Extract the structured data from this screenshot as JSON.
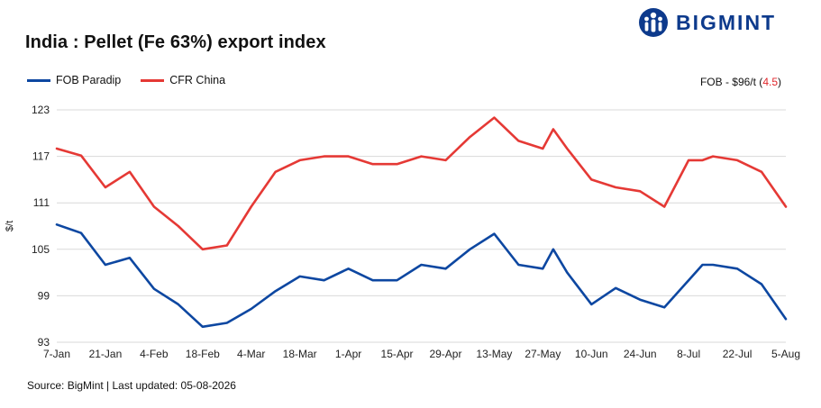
{
  "header": {
    "title": "India : Pellet (Fe 63%) export index",
    "brand": "BIGMINT"
  },
  "note": {
    "prefix": "FOB - $96/t (",
    "delta": "4.5",
    "suffix": ")"
  },
  "footer": {
    "source": "Source: BigMint | Last updated: 05-08-2026"
  },
  "colors": {
    "fob": "#0d47a1",
    "cfr": "#e53935",
    "brand": "#0d3a8c",
    "grid": "#d9d9d9"
  },
  "chart_data": {
    "type": "line",
    "ylabel": "$/t",
    "ylim": [
      93,
      123
    ],
    "yticks": [
      93,
      99,
      105,
      111,
      117,
      123
    ],
    "x_tick_labels": [
      "7-Jan",
      "21-Jan",
      "4-Feb",
      "18-Feb",
      "4-Mar",
      "18-Mar",
      "1-Apr",
      "15-Apr",
      "29-Apr",
      "13-May",
      "27-May",
      "10-Jun",
      "24-Jun",
      "8-Jul",
      "22-Jul",
      "5-Aug"
    ],
    "grid": true,
    "legend": "top-left",
    "x": [
      "7-Jan",
      "14-Jan",
      "21-Jan",
      "28-Jan",
      "4-Feb",
      "11-Feb",
      "18-Feb",
      "25-Feb",
      "4-Mar",
      "11-Mar",
      "18-Mar",
      "25-Mar",
      "1-Apr",
      "8-Apr",
      "15-Apr",
      "22-Apr",
      "29-Apr",
      "6-May",
      "13-May",
      "20-May",
      "27-May",
      "30-May",
      "3-Jun",
      "10-Jun",
      "17-Jun",
      "24-Jun",
      "1-Jul",
      "8-Jul",
      "12-Jul",
      "15-Jul",
      "22-Jul",
      "29-Jul",
      "5-Aug"
    ],
    "series": [
      {
        "name": "FOB Paradip",
        "color": "#0d47a1",
        "values": [
          108.2,
          107.1,
          103,
          103.9,
          99.9,
          97.9,
          95,
          95.5,
          97.3,
          99.6,
          101.5,
          101,
          102.5,
          101,
          101,
          103,
          102.5,
          105,
          107,
          103,
          102.5,
          105,
          102,
          97.9,
          100,
          98.5,
          97.5,
          101,
          103,
          103,
          102.5,
          100.5,
          96
        ]
      },
      {
        "name": "CFR China",
        "color": "#e53935",
        "values": [
          118,
          117.1,
          113,
          115,
          110.5,
          108,
          105,
          105.5,
          110.5,
          115,
          116.5,
          117,
          117,
          116,
          116,
          117,
          116.5,
          119.5,
          122,
          119,
          118,
          120.5,
          118,
          114,
          113,
          112.5,
          110.5,
          116.5,
          116.5,
          117,
          116.5,
          115,
          110.5
        ]
      }
    ]
  }
}
